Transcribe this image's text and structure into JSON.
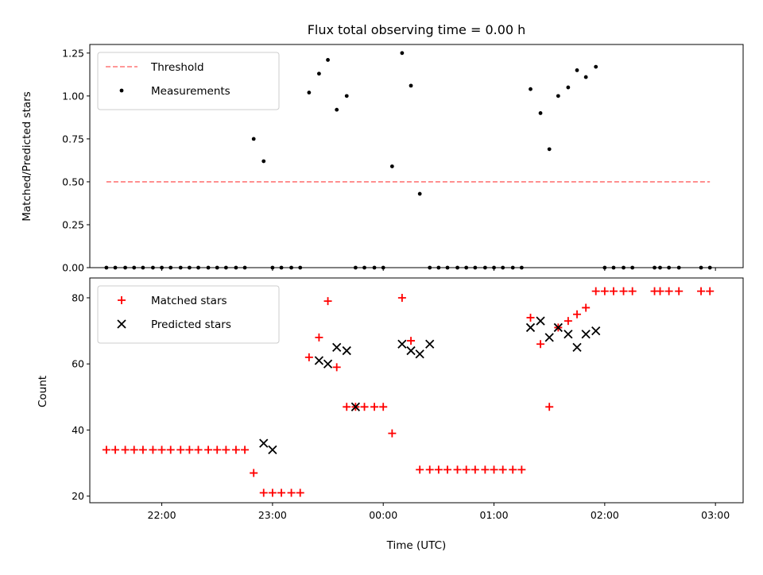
{
  "chart_data": [
    {
      "type": "scatter",
      "title": "Flux total observing time = 0.00 h",
      "xlabel": "",
      "ylabel": "Matched/Predicted stars",
      "ylim": [
        0.0,
        1.3
      ],
      "yticks": [
        "0.00",
        "0.25",
        "0.50",
        "0.75",
        "1.00",
        "1.25"
      ],
      "ytick_values": [
        0.0,
        0.25,
        0.5,
        0.75,
        1.0,
        1.25
      ],
      "xlim_hours": [
        21.35,
        27.25
      ],
      "legend_position": "upper-left",
      "threshold": {
        "name": "Threshold",
        "value": 0.5,
        "x_start_hours": 21.5,
        "x_end_hours": 26.95,
        "color": "#ff7777",
        "style": "dashed"
      },
      "series": [
        {
          "name": "Measurements",
          "color": "#000000",
          "marker": "dot",
          "x_hours": [
            21.5,
            21.58,
            21.67,
            21.75,
            21.83,
            21.92,
            22.0,
            22.08,
            22.17,
            22.25,
            22.33,
            22.42,
            22.5,
            22.58,
            22.67,
            22.75,
            22.83,
            22.92,
            23.0,
            23.08,
            23.17,
            23.25,
            23.33,
            23.42,
            23.5,
            23.58,
            23.67,
            23.75,
            23.83,
            23.92,
            24.0,
            24.08,
            24.17,
            24.25,
            24.33,
            24.42,
            24.5,
            24.58,
            24.67,
            24.75,
            24.83,
            24.92,
            25.0,
            25.08,
            25.17,
            25.25,
            25.33,
            25.42,
            25.5,
            25.58,
            25.67,
            25.75,
            25.83,
            25.92,
            26.0,
            26.08,
            26.17,
            26.25,
            26.45,
            26.5,
            26.58,
            26.67,
            26.87,
            26.95
          ],
          "values": [
            0,
            0,
            0,
            0,
            0,
            0,
            0,
            0,
            0,
            0,
            0,
            0,
            0,
            0,
            0,
            0,
            0.75,
            0.62,
            0,
            0,
            0,
            0,
            1.02,
            1.13,
            1.21,
            0.92,
            1.0,
            0,
            0,
            0,
            0,
            0.59,
            1.25,
            1.06,
            0.43,
            0,
            0,
            0,
            0,
            0,
            0,
            0,
            0,
            0,
            0,
            0,
            1.04,
            0.9,
            0.69,
            1.0,
            1.05,
            1.15,
            1.11,
            1.17,
            0,
            0,
            0,
            0,
            0,
            0,
            0,
            0,
            0,
            0
          ]
        }
      ]
    },
    {
      "type": "scatter",
      "title": "",
      "xlabel": "Time (UTC)",
      "ylabel": "Count",
      "ylim": [
        18,
        86
      ],
      "yticks": [
        "20",
        "40",
        "60",
        "80"
      ],
      "ytick_values": [
        20,
        40,
        60,
        80
      ],
      "xlim_hours": [
        21.35,
        27.25
      ],
      "xticks": [
        "22:00",
        "23:00",
        "00:00",
        "01:00",
        "02:00",
        "03:00"
      ],
      "xtick_values_hours": [
        22,
        23,
        24,
        25,
        26,
        27
      ],
      "legend_position": "upper-left",
      "series": [
        {
          "name": "Matched stars",
          "color": "#ff0000",
          "marker": "plus",
          "x_hours": [
            21.5,
            21.58,
            21.67,
            21.75,
            21.83,
            21.92,
            22.0,
            22.08,
            22.17,
            22.25,
            22.33,
            22.42,
            22.5,
            22.58,
            22.67,
            22.75,
            22.83,
            22.92,
            23.0,
            23.08,
            23.17,
            23.25,
            23.33,
            23.42,
            23.5,
            23.58,
            23.67,
            23.75,
            23.83,
            23.92,
            24.0,
            24.08,
            24.17,
            24.25,
            24.33,
            24.42,
            24.5,
            24.58,
            24.67,
            24.75,
            24.83,
            24.92,
            25.0,
            25.08,
            25.17,
            25.25,
            25.33,
            25.42,
            25.5,
            25.58,
            25.67,
            25.75,
            25.83,
            25.92,
            26.0,
            26.08,
            26.17,
            26.25,
            26.45,
            26.5,
            26.58,
            26.67,
            26.87,
            26.95
          ],
          "values": [
            34,
            34,
            34,
            34,
            34,
            34,
            34,
            34,
            34,
            34,
            34,
            34,
            34,
            34,
            34,
            34,
            27,
            21,
            21,
            21,
            21,
            21,
            62,
            68,
            79,
            59,
            47,
            47,
            47,
            47,
            47,
            39,
            80,
            67,
            28,
            28,
            28,
            28,
            28,
            28,
            28,
            28,
            28,
            28,
            28,
            28,
            74,
            66,
            47,
            71,
            73,
            75,
            77,
            82,
            82,
            82,
            82,
            82,
            82,
            82,
            82,
            82,
            82,
            82
          ]
        },
        {
          "name": "Predicted stars",
          "color": "#000000",
          "marker": "x",
          "x_hours": [
            22.92,
            23.0,
            23.42,
            23.5,
            23.58,
            23.67,
            23.75,
            24.17,
            24.25,
            24.33,
            24.42,
            25.33,
            25.42,
            25.5,
            25.58,
            25.67,
            25.75,
            25.83,
            25.92
          ],
          "values": [
            36,
            34,
            61,
            60,
            65,
            64,
            47,
            66,
            64,
            63,
            66,
            71,
            73,
            68,
            71,
            69,
            65,
            69,
            70
          ]
        }
      ]
    }
  ]
}
